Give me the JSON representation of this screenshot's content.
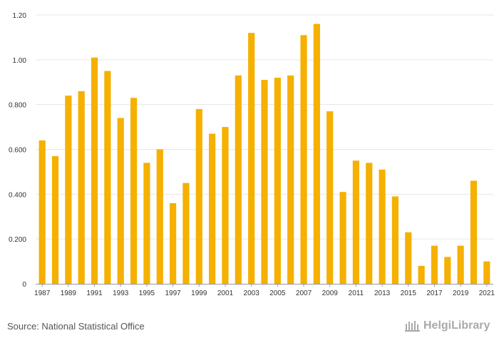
{
  "chart_data": {
    "type": "bar",
    "title": "",
    "xlabel": "",
    "ylabel": "",
    "ylim": [
      0,
      1.2
    ],
    "yticks": [
      {
        "value": 0,
        "label": "0"
      },
      {
        "value": 0.2,
        "label": "0.200"
      },
      {
        "value": 0.4,
        "label": "0.400"
      },
      {
        "value": 0.6,
        "label": "0.600"
      },
      {
        "value": 0.8,
        "label": "0.800"
      },
      {
        "value": 1.0,
        "label": "1.00"
      },
      {
        "value": 1.2,
        "label": "1.20"
      }
    ],
    "grid": true,
    "bar_color": "#f5b000",
    "categories": [
      "1987",
      "1988",
      "1989",
      "1990",
      "1991",
      "1992",
      "1993",
      "1994",
      "1995",
      "1996",
      "1997",
      "1998",
      "1999",
      "2000",
      "2001",
      "2002",
      "2003",
      "2004",
      "2005",
      "2006",
      "2007",
      "2008",
      "2009",
      "2010",
      "2011",
      "2012",
      "2013",
      "2014",
      "2015",
      "2016",
      "2017",
      "2018",
      "2019",
      "2020",
      "2021"
    ],
    "values": [
      0.64,
      0.57,
      0.84,
      0.86,
      1.01,
      0.95,
      0.74,
      0.83,
      0.54,
      0.6,
      0.36,
      0.45,
      0.78,
      0.67,
      0.7,
      0.93,
      1.12,
      0.91,
      0.92,
      0.93,
      1.11,
      1.16,
      0.77,
      0.41,
      0.55,
      0.54,
      0.51,
      0.39,
      0.23,
      0.08,
      0.17,
      0.12,
      0.17,
      0.46,
      0.1
    ],
    "xtick_labels": [
      "1987",
      "1989",
      "1991",
      "1993",
      "1995",
      "1997",
      "1999",
      "2001",
      "2003",
      "2005",
      "2007",
      "2009",
      "2011",
      "2013",
      "2015",
      "2017",
      "2019",
      "2021"
    ]
  },
  "footer": {
    "source": "Source: National Statistical Office",
    "brand": "HelgiLibrary"
  },
  "colors": {
    "grid": "#e6e6e6",
    "axis": "#999999",
    "brand": "#a9a9a9"
  },
  "icons": {
    "brand_logo": "helgi-library-icon"
  }
}
